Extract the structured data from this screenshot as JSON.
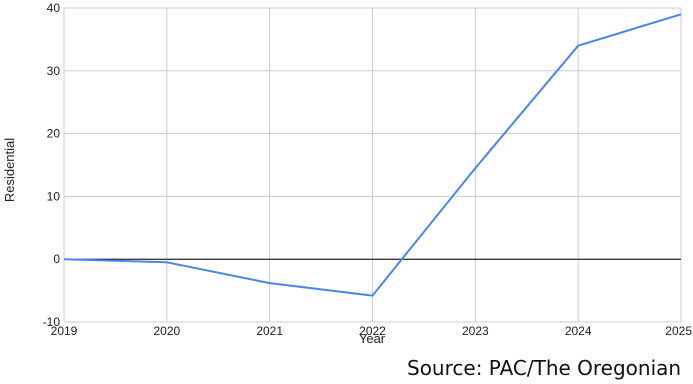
{
  "chart_data": {
    "type": "line",
    "title": "",
    "xlabel": "Year",
    "ylabel": "Residential",
    "x": [
      2019,
      2020,
      2021,
      2022,
      2023,
      2024,
      2025
    ],
    "series": [
      {
        "values": [
          0,
          -0.5,
          -3.8,
          -5.8,
          14.5,
          34,
          39
        ],
        "color": "#4a86e8"
      }
    ],
    "xlim": [
      2019,
      2025
    ],
    "ylim": [
      -10,
      40
    ],
    "yticks": [
      -10,
      0,
      10,
      20,
      30,
      40
    ],
    "grid": true,
    "zero_line": true,
    "legend": "none"
  },
  "source_note": "Source: PAC/The Oregonian"
}
